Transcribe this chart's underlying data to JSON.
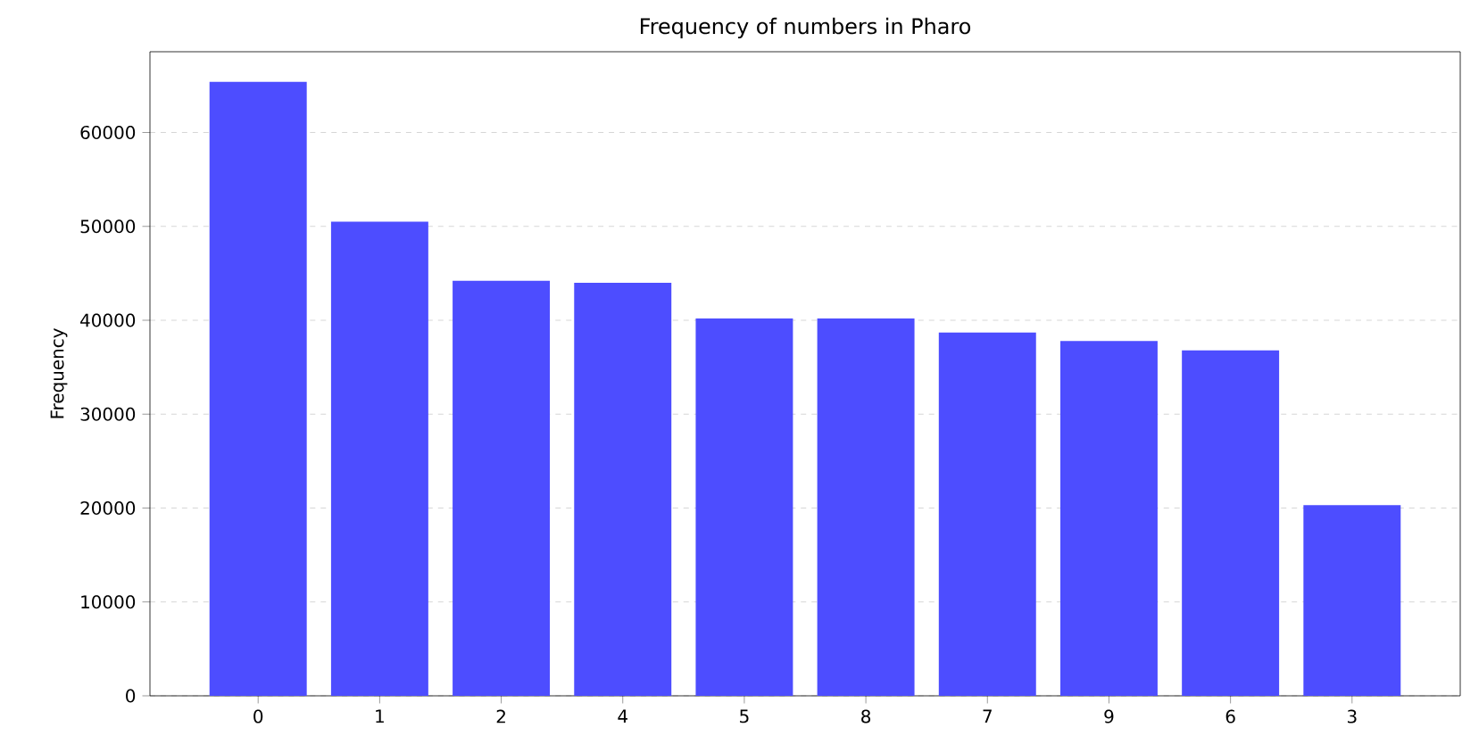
{
  "chart_data": {
    "type": "bar",
    "title": "Frequency of numbers in Pharo",
    "ylabel": "Frequency",
    "categories": [
      "0",
      "1",
      "2",
      "4",
      "5",
      "8",
      "7",
      "9",
      "6",
      "3"
    ],
    "values": [
      65400,
      50500,
      44200,
      44000,
      40200,
      40200,
      38700,
      37800,
      36800,
      20300
    ],
    "color": "#4d4dff",
    "ylim": [
      0,
      68600
    ],
    "yticks": [
      0,
      10000,
      20000,
      30000,
      40000,
      50000,
      60000
    ],
    "grid": "y"
  }
}
